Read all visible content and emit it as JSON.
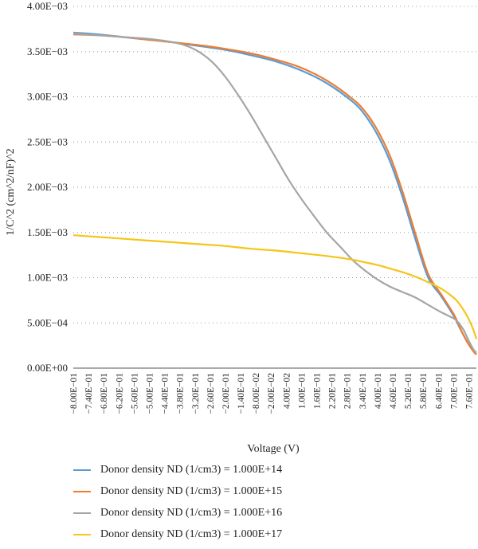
{
  "chart_data": {
    "type": "line",
    "xlabel": "Voltage (V)",
    "ylabel": "1/C^2 (cm^2/nF)^2",
    "xlim": [
      -0.8,
      0.79
    ],
    "ylim": [
      0,
      0.004
    ],
    "y_ticks": [
      "0.00E+00",
      "5.00E−04",
      "1.00E−03",
      "1.50E−03",
      "2.00E−03",
      "2.50E−03",
      "3.00E−03",
      "3.50E−03",
      "4.00E−03"
    ],
    "x_ticks": [
      "−8.00E−01",
      "−7.40E−01",
      "−6.80E−01",
      "−6.20E−01",
      "−5.60E−01",
      "−5.00E−01",
      "−4.40E−01",
      "−3.80E−01",
      "−3.20E−01",
      "−2.60E−01",
      "−2.00E−01",
      "−1.40E−01",
      "−8.00E−02",
      "−2.00E−02",
      "4.00E−02",
      "1.00E−01",
      "1.60E−01",
      "2.20E−01",
      "2.80E−01",
      "3.40E−01",
      "4.00E−01",
      "4.60E−01",
      "5.20E−01",
      "5.80E−01",
      "6.40E−01",
      "7.00E−01",
      "7.60E−01"
    ],
    "grid": "horizontal dotted",
    "legend_position": "bottom",
    "series": [
      {
        "name": "Donor density ND (1/cm3) = 1.000E+14",
        "color": "#5b9bd5",
        "x": [
          -0.8,
          -0.7,
          -0.6,
          -0.5,
          -0.4,
          -0.3,
          -0.2,
          -0.1,
          0.0,
          0.1,
          0.2,
          0.3,
          0.35,
          0.4,
          0.45,
          0.5,
          0.55,
          0.6,
          0.65,
          0.7,
          0.72,
          0.74,
          0.76,
          0.78,
          0.79
        ],
        "y": [
          0.00371,
          0.00369,
          0.00366,
          0.00363,
          0.0036,
          0.00356,
          0.00352,
          0.00346,
          0.00339,
          0.00329,
          0.00315,
          0.00295,
          0.0028,
          0.00258,
          0.00228,
          0.00188,
          0.00142,
          0.001,
          0.0008,
          0.00058,
          0.00047,
          0.00036,
          0.00026,
          0.00018,
          0.00015
        ]
      },
      {
        "name": "Donor density ND (1/cm3) = 1.000E+15",
        "color": "#ed7d31",
        "x": [
          -0.8,
          -0.7,
          -0.6,
          -0.5,
          -0.4,
          -0.3,
          -0.2,
          -0.1,
          0.0,
          0.1,
          0.2,
          0.3,
          0.35,
          0.4,
          0.45,
          0.5,
          0.55,
          0.6,
          0.65,
          0.7,
          0.72,
          0.74,
          0.76,
          0.78,
          0.79
        ],
        "y": [
          0.00369,
          0.00368,
          0.00366,
          0.00363,
          0.0036,
          0.00357,
          0.00353,
          0.00348,
          0.00341,
          0.00332,
          0.00318,
          0.00298,
          0.00284,
          0.00263,
          0.00234,
          0.00194,
          0.00148,
          0.00104,
          0.00082,
          0.0006,
          0.00048,
          0.00036,
          0.00026,
          0.00018,
          0.00015
        ]
      },
      {
        "name": "Donor density ND (1/cm3) = 1.000E+16",
        "color": "#a5a5a5",
        "x": [
          -0.8,
          -0.7,
          -0.6,
          -0.5,
          -0.4,
          -0.35,
          -0.3,
          -0.25,
          -0.2,
          -0.15,
          -0.1,
          -0.05,
          0.0,
          0.05,
          0.1,
          0.15,
          0.2,
          0.25,
          0.3,
          0.35,
          0.4,
          0.45,
          0.5,
          0.55,
          0.6,
          0.65,
          0.7,
          0.72,
          0.74,
          0.76,
          0.78,
          0.79
        ],
        "y": [
          0.0037,
          0.00368,
          0.00366,
          0.00364,
          0.0036,
          0.00356,
          0.00349,
          0.00338,
          0.00322,
          0.00302,
          0.0028,
          0.00256,
          0.00232,
          0.00208,
          0.00187,
          0.00168,
          0.0015,
          0.00135,
          0.0012,
          0.00108,
          0.00098,
          0.0009,
          0.00084,
          0.00078,
          0.0007,
          0.00062,
          0.00055,
          0.0005,
          0.00042,
          0.0003,
          0.0002,
          0.00017
        ]
      },
      {
        "name": "Donor density ND (1/cm3) = 1.000E+17",
        "color": "#f5c518",
        "x": [
          -0.8,
          -0.7,
          -0.6,
          -0.5,
          -0.4,
          -0.3,
          -0.2,
          -0.1,
          0.0,
          0.1,
          0.2,
          0.3,
          0.35,
          0.4,
          0.45,
          0.5,
          0.55,
          0.6,
          0.65,
          0.7,
          0.72,
          0.74,
          0.76,
          0.78,
          0.79
        ],
        "y": [
          0.00147,
          0.00145,
          0.00143,
          0.00141,
          0.00139,
          0.00137,
          0.00135,
          0.00132,
          0.0013,
          0.00127,
          0.00124,
          0.0012,
          0.00117,
          0.00114,
          0.0011,
          0.00106,
          0.00101,
          0.00095,
          0.00088,
          0.00078,
          0.00072,
          0.00064,
          0.00054,
          0.00041,
          0.00032
        ]
      }
    ]
  }
}
